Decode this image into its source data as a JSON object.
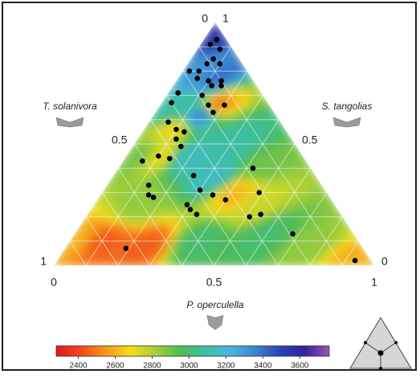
{
  "chart_data": {
    "type": "ternary",
    "axes": {
      "bottom": {
        "title": "P. operculella",
        "ticks": [
          0,
          0.5,
          1
        ]
      },
      "left": {
        "title": "T. solanivora",
        "ticks": [
          0,
          0.5,
          1
        ]
      },
      "right": {
        "title": "S. tangolias",
        "ticks": [
          0,
          0.5,
          1
        ]
      }
    },
    "grid_ticks": [
      0.1,
      0.2,
      0.3,
      0.4,
      0.5,
      0.6,
      0.7,
      0.8,
      0.9
    ],
    "points": {
      "color": "#000000",
      "p_operculella": [
        0.04,
        0.03,
        0.07,
        0.07,
        0.06,
        0.1,
        0.05,
        0.02,
        0.06,
        0.1,
        0.14,
        0.12,
        0.15,
        0.11,
        0.03,
        0.03,
        0.15,
        0.2,
        0.18,
        0.06,
        0.1,
        0.13,
        0.12,
        0.15,
        0.1,
        0.14,
        0.06,
        0.25,
        0.13,
        0.15,
        0.17,
        0.3,
        0.35,
        0.29,
        0.31,
        0.34,
        0.42,
        0.49,
        0.51,
        0.4,
        0.54,
        0.68,
        0.19,
        0.93
      ],
      "s_tangolias": [
        0.93,
        0.91,
        0.89,
        0.85,
        0.83,
        0.83,
        0.8,
        0.8,
        0.77,
        0.76,
        0.76,
        0.74,
        0.74,
        0.7,
        0.71,
        0.67,
        0.66,
        0.66,
        0.63,
        0.59,
        0.56,
        0.55,
        0.52,
        0.49,
        0.45,
        0.44,
        0.43,
        0.37,
        0.33,
        0.29,
        0.28,
        0.31,
        0.29,
        0.25,
        0.23,
        0.21,
        0.4,
        0.3,
        0.2,
        0.27,
        0.21,
        0.13,
        0.07,
        0.02
      ]
    },
    "field": {
      "p_operculella": [
        0.02,
        0.06,
        0.12,
        0.18,
        0.15,
        0.05,
        0.09,
        0.1,
        0.05,
        0.2,
        0.32,
        0.42,
        0.5,
        0.45,
        0.1,
        0.25,
        0.15,
        0.4,
        0.6,
        0.75,
        0.92,
        0.02,
        0.3
      ],
      "s_tangolias": [
        0.95,
        0.8,
        0.78,
        0.66,
        0.62,
        0.65,
        0.56,
        0.45,
        0.45,
        0.45,
        0.36,
        0.3,
        0.25,
        0.4,
        0.1,
        0.08,
        0.25,
        0.1,
        0.12,
        0.08,
        0.02,
        0.1,
        0.5
      ],
      "values": [
        3550,
        3300,
        3400,
        2500,
        3350,
        3100,
        2700,
        2700,
        2900,
        3150,
        3150,
        2600,
        2750,
        2900,
        2450,
        2450,
        2850,
        3000,
        3000,
        2850,
        2600,
        2600,
        3100
      ]
    },
    "colorbar": {
      "lim": [
        2280,
        3760
      ],
      "ticks": [
        2400,
        2600,
        2800,
        3000,
        3200,
        3400,
        3600
      ],
      "colors": [
        "#e3141b",
        "#ef4a1d",
        "#f7961c",
        "#f3de1c",
        "#a6cf38",
        "#4fbb55",
        "#3dbfa0",
        "#4bb6dc",
        "#3a86d0",
        "#2846b3",
        "#33229a",
        "#9a55b8"
      ]
    }
  }
}
